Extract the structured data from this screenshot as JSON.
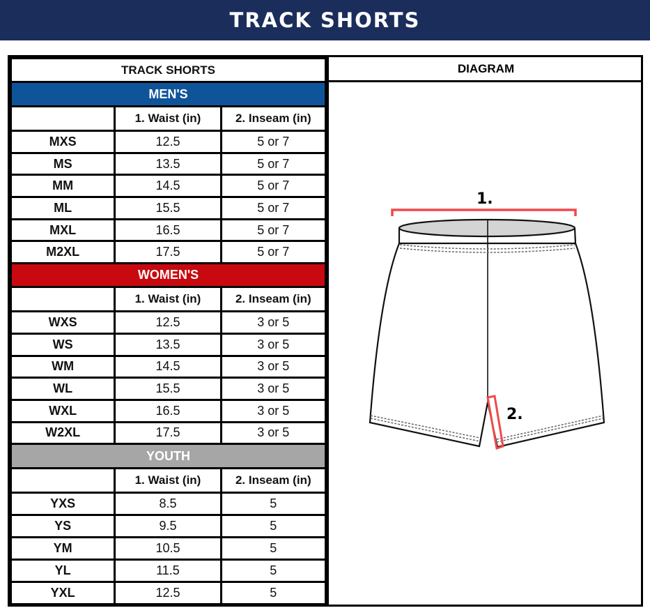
{
  "banner": {
    "title": "TRACK SHORTS"
  },
  "table": {
    "title": "TRACK SHORTS",
    "diagram_title": "DIAGRAM",
    "columns": [
      "",
      "1. Waist (in)",
      "2. Inseam (in)"
    ],
    "sections": [
      {
        "label": "MEN'S",
        "color": "#0f5499",
        "rows": [
          [
            "MXS",
            "12.5",
            "5 or 7"
          ],
          [
            "MS",
            "13.5",
            "5 or 7"
          ],
          [
            "MM",
            "14.5",
            "5 or 7"
          ],
          [
            "ML",
            "15.5",
            "5 or 7"
          ],
          [
            "MXL",
            "16.5",
            "5 or 7"
          ],
          [
            "M2XL",
            "17.5",
            "5 or 7"
          ]
        ]
      },
      {
        "label": "WOMEN'S",
        "color": "#c8090f",
        "rows": [
          [
            "WXS",
            "12.5",
            "3 or 5"
          ],
          [
            "WS",
            "13.5",
            "3 or 5"
          ],
          [
            "WM",
            "14.5",
            "3 or 5"
          ],
          [
            "WL",
            "15.5",
            "3 or 5"
          ],
          [
            "WXL",
            "16.5",
            "3 or 5"
          ],
          [
            "W2XL",
            "17.5",
            "3 or 5"
          ]
        ]
      },
      {
        "label": "YOUTH",
        "color": "#a6a6a6",
        "rows": [
          [
            "YXS",
            "8.5",
            "5"
          ],
          [
            "YS",
            "9.5",
            "5"
          ],
          [
            "YM",
            "10.5",
            "5"
          ],
          [
            "YL",
            "11.5",
            "5"
          ],
          [
            "YXL",
            "12.5",
            "5"
          ]
        ]
      }
    ]
  },
  "diagram": {
    "label_waist": "1.",
    "label_inseam": "2.",
    "accent": "#f0494b"
  }
}
